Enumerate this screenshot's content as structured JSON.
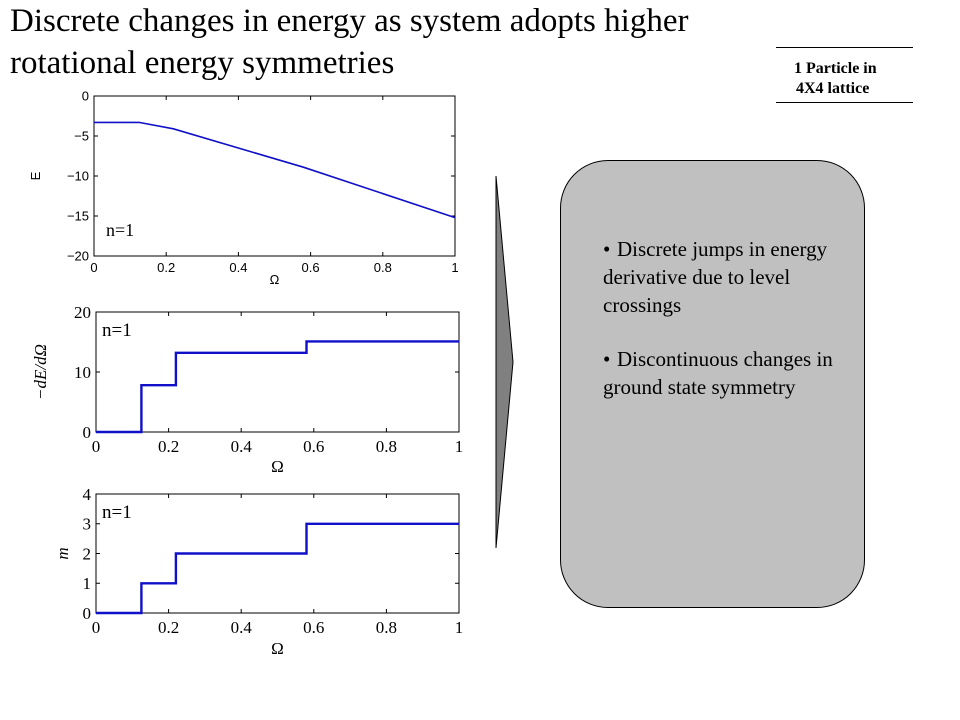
{
  "slide": {
    "title": "Discrete changes in energy as system adopts higher rotational energy symmetries",
    "tag_line1": "1 Particle in",
    "tag_line2": "4X4 lattice"
  },
  "callout": {
    "bullets": [
      "Discrete jumps in energy derivative due to level crossings",
      "Discontinuous changes in ground state symmetry"
    ]
  },
  "chart_data": [
    {
      "type": "line",
      "xlabel": "Ω",
      "ylabel": "E",
      "annotation": "n=1",
      "xlim": [
        0,
        1
      ],
      "ylim": [
        -20,
        0
      ],
      "xticks": [
        "0",
        "0.2",
        "0.4",
        "0.6",
        "0.8",
        "1"
      ],
      "yticks": [
        "0",
        "−5",
        "−10",
        "−15",
        "−20"
      ],
      "series": [
        {
          "x": [
            0,
            0.125,
            0.22,
            0.58,
            1.0
          ],
          "y": [
            -3.3,
            -3.3,
            -4.1,
            -8.9,
            -15.2
          ]
        }
      ]
    },
    {
      "type": "line",
      "xlabel": "Ω",
      "ylabel": "−dE/dΩ",
      "annotation": "n=1",
      "xlim": [
        0,
        1
      ],
      "ylim": [
        0,
        20
      ],
      "xticks": [
        "0",
        "0.2",
        "0.4",
        "0.6",
        "0.8",
        "1"
      ],
      "yticks": [
        "0",
        "10",
        "20"
      ],
      "series": [
        {
          "x": [
            0,
            0.125,
            0.125,
            0.22,
            0.22,
            0.58,
            0.58,
            1.0
          ],
          "y": [
            0,
            0,
            7.8,
            7.8,
            13.2,
            13.2,
            15.1,
            15.1
          ]
        }
      ]
    },
    {
      "type": "line",
      "xlabel": "Ω",
      "ylabel": "m",
      "annotation": "n=1",
      "xlim": [
        0,
        1
      ],
      "ylim": [
        0,
        4
      ],
      "xticks": [
        "0",
        "0.2",
        "0.4",
        "0.6",
        "0.8",
        "1"
      ],
      "yticks": [
        "0",
        "1",
        "2",
        "3",
        "4"
      ],
      "series": [
        {
          "x": [
            0,
            0.125,
            0.125,
            0.22,
            0.22,
            0.58,
            0.58,
            1.0
          ],
          "y": [
            0,
            0,
            1,
            1,
            2,
            2,
            3,
            3
          ]
        }
      ]
    }
  ]
}
